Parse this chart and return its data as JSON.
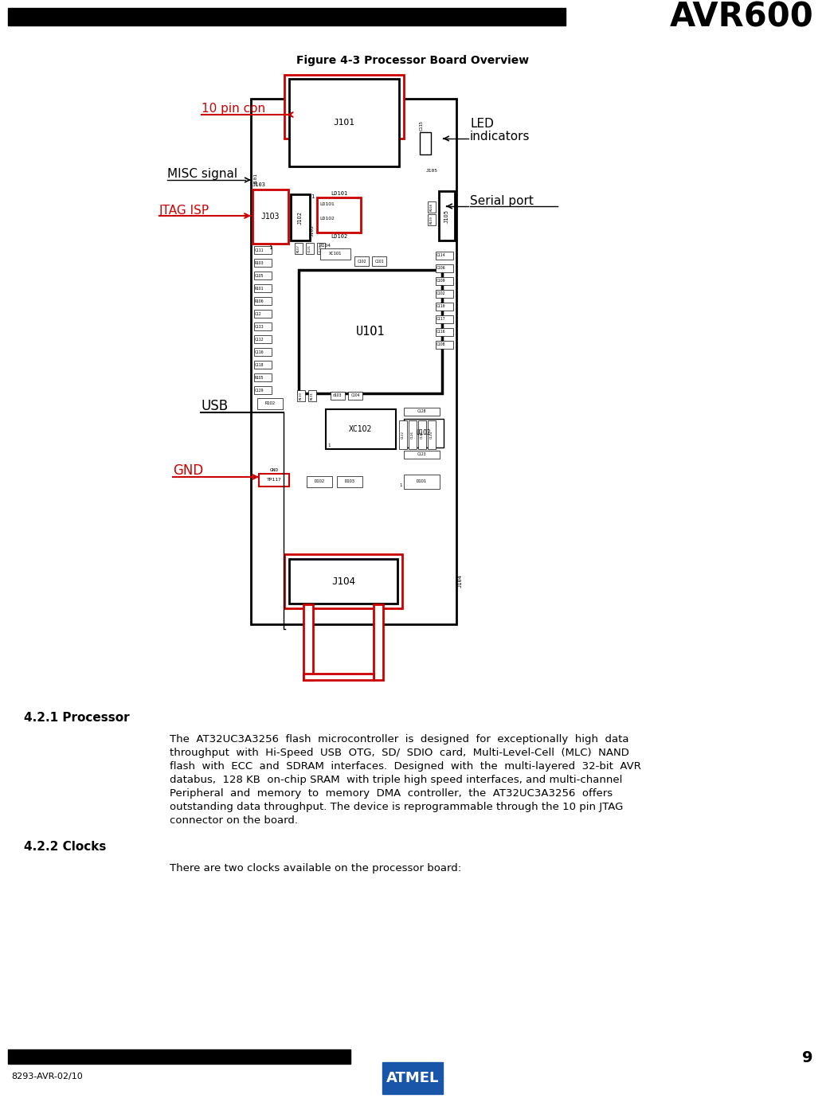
{
  "title": "AVR600",
  "figure_caption": "Figure 4-3 Processor Board Overview",
  "page_number": "9",
  "footer_left": "8293-AVR-02/10",
  "section_421": "4.2.1 Processor",
  "section_422": "4.2.2 Clocks",
  "para_421_lines": [
    "The  AT32UC3A3256  flash  microcontroller  is  designed  for  exceptionally  high  data",
    "throughput  with  Hi-Speed  USB  OTG,  SD/  SDIO  card,  Multi-Level-Cell  (MLC)  NAND",
    "flash  with  ECC  and  SDRAM  interfaces.  Designed  with  the  multi-layered  32-bit  AVR",
    "databus,  128 KB  on-chip SRAM  with triple high speed interfaces, and multi-channel",
    "Peripheral  and  memory  to  memory  DMA  controller,  the  AT32UC3A3256  offers",
    "outstanding data throughput. The device is reprogrammable through the 10 pin JTAG",
    "connector on the board."
  ],
  "para_422": "There are two clocks available on the processor board:",
  "label_10pin": "10 pin con",
  "label_misc": "MISC signal",
  "label_jtag": "JTAG ISP",
  "label_gnd": "GND",
  "label_usb": "USB",
  "label_led1": "LED",
  "label_led2": "indicators",
  "label_serial": "Serial port",
  "red_color": "#cc0000",
  "black_color": "#000000"
}
